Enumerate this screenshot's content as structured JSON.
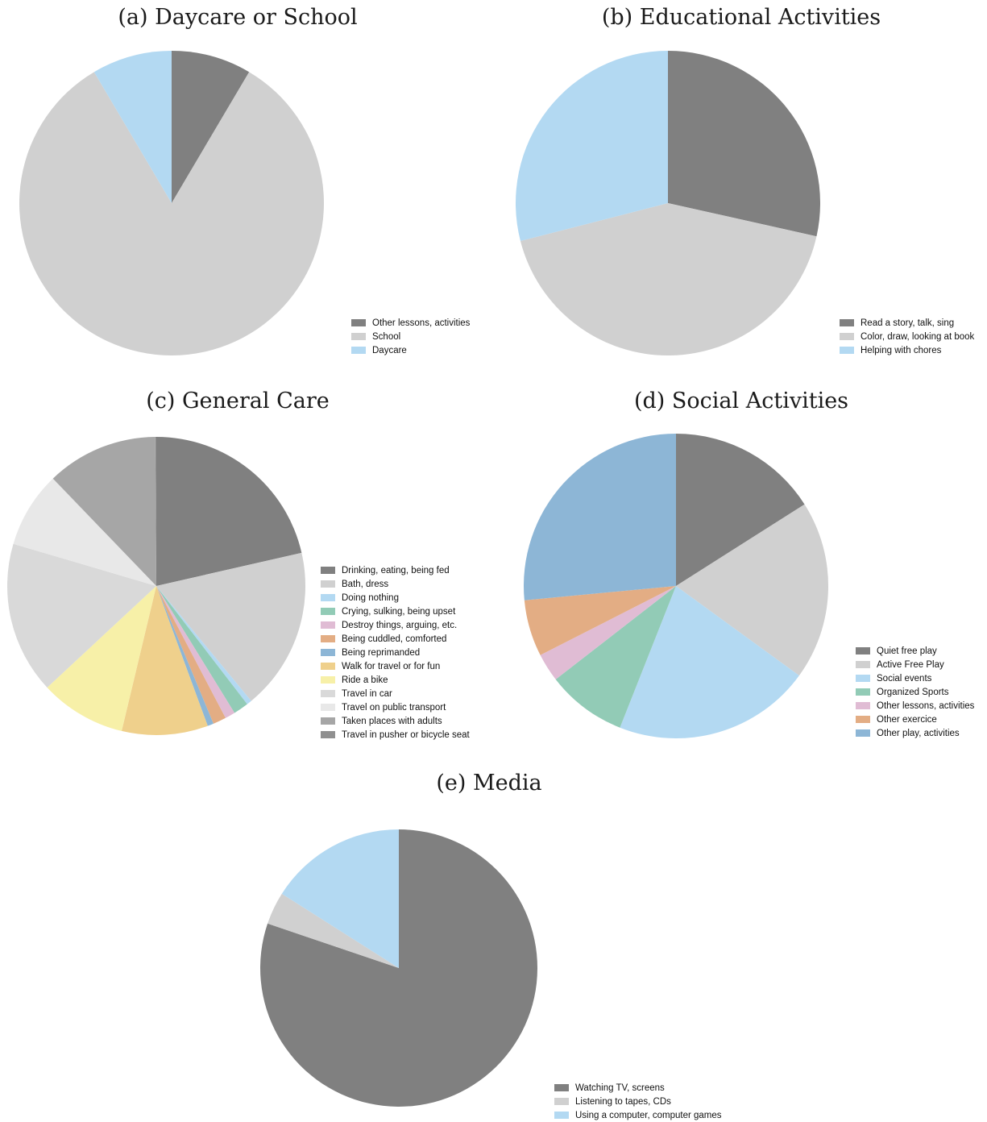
{
  "chart_data": [
    {
      "type": "pie",
      "title": "(a) Daycare or School",
      "categories": [
        "Other lessons, activities",
        "School",
        "Daycare"
      ],
      "values": [
        8.5,
        83,
        8.5
      ],
      "colors": [
        "#808080",
        "#d0d0d0",
        "#b3d9f2"
      ],
      "legend_placement": "bottom-right",
      "start": "12 o'clock, clockwise"
    },
    {
      "type": "pie",
      "title": "(b) Educational Activities",
      "categories": [
        "Read a story, talk, sing",
        "Color, draw, looking at book",
        "Helping with chores"
      ],
      "values": [
        28.5,
        42.5,
        29
      ],
      "colors": [
        "#808080",
        "#d0d0d0",
        "#b3d9f2"
      ],
      "legend_placement": "bottom-right",
      "start": "12 o'clock, clockwise"
    },
    {
      "type": "pie",
      "title": "(c) General Care",
      "categories": [
        "Drinking, eating, being fed",
        "Bath, dress",
        "Doing nothing",
        "Crying, sulking, being upset",
        "Destroy things, arguing, etc.",
        "Being cuddled, comforted",
        "Being reprimanded",
        "Walk for travel or for fun",
        "Ride a bike",
        "Travel in car",
        "Travel on public transport",
        "Taken places with adults",
        "Travel in pusher or bicycle seat"
      ],
      "values": [
        19.5,
        16,
        0.5,
        1.5,
        1,
        1.3,
        0.6,
        8.5,
        8.5,
        15,
        7.5,
        11,
        0.1
      ],
      "colors": [
        "#808080",
        "#d0d0d0",
        "#b3d9f2",
        "#92cbb6",
        "#e0bcd4",
        "#e3ad84",
        "#8db6d6",
        "#efd08c",
        "#f7f0a8",
        "#d9d9d9",
        "#e8e8e8",
        "#a6a6a6",
        "#909090"
      ],
      "legend_placement": "right",
      "start": "12 o'clock, clockwise"
    },
    {
      "type": "pie",
      "title": "(d) Social Activities",
      "categories": [
        "Quiet free play",
        "Active Free Play",
        "Social events",
        "Organized Sports",
        "Other lessons, activities",
        "Other exercice",
        "Other play, activities"
      ],
      "values": [
        16,
        19,
        21,
        8.5,
        3,
        6,
        26.5
      ],
      "colors": [
        "#808080",
        "#d0d0d0",
        "#b3d9f2",
        "#92cbb6",
        "#e0bcd4",
        "#e3ad84",
        "#8db6d6"
      ],
      "legend_placement": "bottom-right",
      "start": "12 o'clock, clockwise"
    },
    {
      "type": "pie",
      "title": "(e) Media",
      "categories": [
        "Watching TV, screens",
        "Listening to tapes, CDs",
        "Using a computer, computer games"
      ],
      "values": [
        80.2,
        3.8,
        16
      ],
      "colors": [
        "#808080",
        "#d0d0d0",
        "#b3d9f2"
      ],
      "legend_placement": "bottom-right",
      "start": "12 o'clock, clockwise"
    }
  ]
}
